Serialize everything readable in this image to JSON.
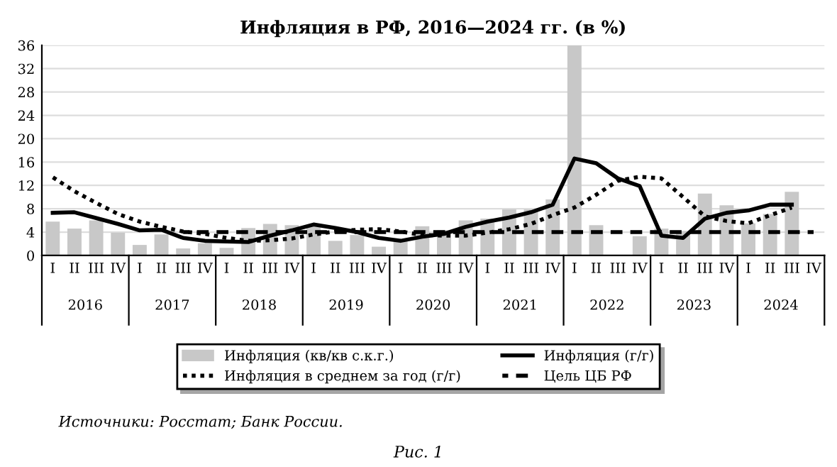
{
  "chart_data": {
    "type": "bar",
    "title": "Инфляция в РФ, 2016—2024 гг. (в %)",
    "categories": [
      "I",
      "II",
      "III",
      "IV",
      "I",
      "II",
      "III",
      "IV",
      "I",
      "II",
      "III",
      "IV",
      "I",
      "II",
      "III",
      "IV",
      "I",
      "II",
      "III",
      "IV",
      "I",
      "II",
      "III",
      "IV",
      "I",
      "II",
      "III",
      "IV",
      "I",
      "II",
      "III",
      "IV",
      "I",
      "II",
      "III",
      "IV"
    ],
    "series": [
      {
        "name": "Инфляция (кв/кв с.к.г.)",
        "color": "#c8c8c8",
        "values": [
          5.8,
          4.6,
          6.0,
          3.9,
          1.8,
          3.6,
          1.2,
          2.1,
          1.3,
          4.7,
          5.4,
          5.2,
          5.3,
          2.5,
          3.5,
          1.5,
          2.7,
          5.0,
          4.3,
          6.0,
          6.3,
          7.9,
          7.9,
          9.6,
          36,
          5.2,
          null,
          3.3,
          4.6,
          4.2,
          10.6,
          8.6,
          5.5,
          7.1,
          10.9,
          null
        ]
      },
      {
        "name": "Инфляция (г/г)",
        "type": "line",
        "line_style": "solid",
        "color": "#000000",
        "values": [
          7.3,
          7.4,
          6.4,
          5.4,
          4.3,
          4.4,
          3.0,
          2.5,
          2.4,
          2.3,
          3.4,
          4.3,
          5.3,
          4.7,
          4.0,
          3.0,
          2.5,
          3.2,
          3.7,
          4.9,
          5.8,
          6.5,
          7.4,
          8.7,
          16.6,
          15.8,
          13.2,
          11.9,
          3.4,
          3.0,
          6.3,
          7.3,
          7.7,
          8.7,
          8.7,
          null
        ]
      },
      {
        "name": "Инфляция в среднем за год (г/г)",
        "type": "line",
        "line_style": "dotted",
        "color": "#000000",
        "values": [
          13.4,
          11.0,
          9.0,
          7.1,
          5.8,
          4.9,
          4.1,
          3.7,
          3.0,
          2.5,
          2.6,
          2.9,
          3.6,
          4.1,
          4.4,
          4.5,
          4.1,
          3.5,
          3.4,
          3.4,
          3.9,
          4.5,
          5.4,
          6.9,
          8.2,
          10.4,
          12.8,
          13.5,
          13.2,
          10.0,
          6.7,
          5.9,
          5.5,
          6.9,
          8.2,
          null
        ]
      },
      {
        "name": "Цель ЦБ РФ",
        "type": "line",
        "line_style": "dashed",
        "color": "#000000",
        "values": [
          null,
          null,
          null,
          null,
          null,
          null,
          4,
          4,
          4,
          4,
          4,
          4,
          4,
          4,
          4,
          4,
          4,
          4,
          4,
          4,
          4,
          4,
          4,
          4,
          4,
          4,
          4,
          4,
          4,
          4,
          4,
          4,
          4,
          4,
          4,
          4
        ]
      }
    ],
    "ylim": [
      0,
      36
    ],
    "yticks": [
      0,
      4,
      8,
      12,
      16,
      20,
      24,
      28,
      32,
      36
    ],
    "grid": "y",
    "legend": "bottom",
    "marker": "none",
    "annotations": [
      "2016",
      "2017",
      "2018",
      "2019",
      "2020",
      "2021",
      "2022",
      "2023",
      "2024",
      "Источники: Росстат; Банк России.",
      "Рис. 1"
    ]
  }
}
